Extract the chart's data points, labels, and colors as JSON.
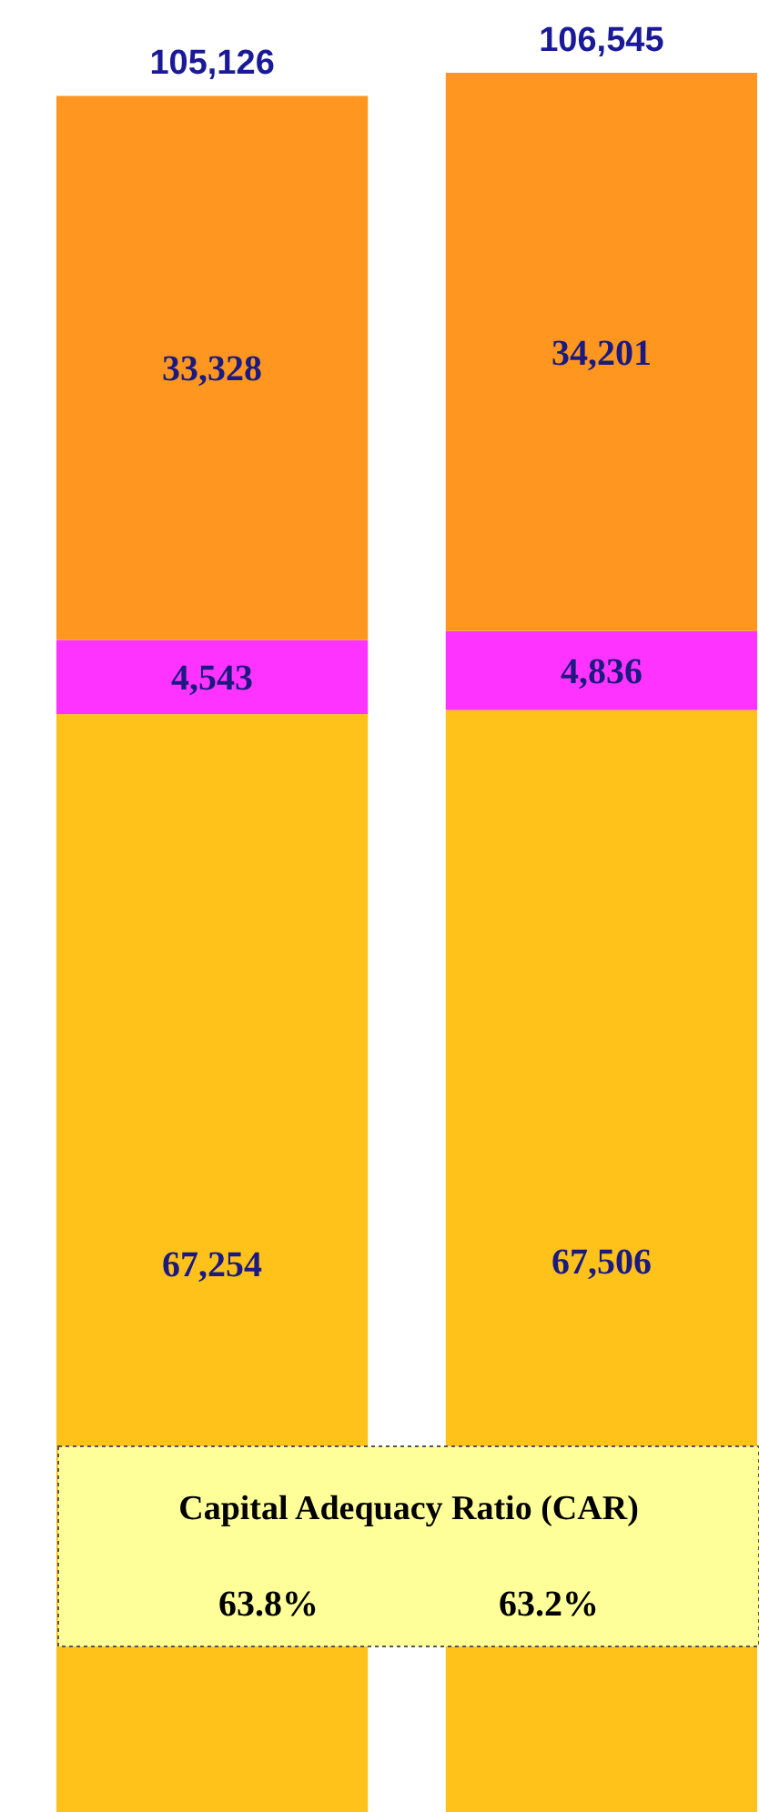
{
  "chart_data": {
    "type": "bar",
    "stacked": true,
    "categories": [
      null,
      null
    ],
    "series": [
      {
        "color": "#ffc21a",
        "values": [
          67254,
          67506
        ],
        "value_labels": [
          "67,254",
          "67,506"
        ]
      },
      {
        "color": "#ff33ff",
        "values": [
          4543,
          4836
        ],
        "value_labels": [
          "4,543",
          "4,836"
        ]
      },
      {
        "color": "#ff961f",
        "values": [
          33328,
          34201
        ],
        "value_labels": [
          "33,328",
          "34,201"
        ]
      }
    ],
    "totals": [
      "105,126",
      "106,545"
    ],
    "annotations": [
      "Capital Adequacy Ratio (CAR)",
      "63.8%",
      "63.2%"
    ]
  }
}
